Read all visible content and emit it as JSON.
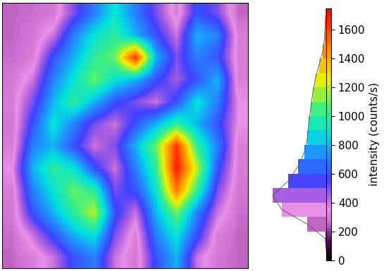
{
  "chart_data": {
    "type": "heatmap",
    "tick_labels": false,
    "cells": [
      [
        250,
        260,
        280,
        500,
        700,
        900,
        700,
        500,
        300,
        600,
        500,
        250
      ],
      [
        250,
        280,
        400,
        700,
        900,
        1000,
        800,
        600,
        400,
        800,
        700,
        300
      ],
      [
        260,
        300,
        600,
        800,
        1000,
        1100,
        1650,
        800,
        500,
        700,
        600,
        300
      ],
      [
        280,
        400,
        700,
        900,
        1100,
        900,
        800,
        600,
        450,
        600,
        800,
        300
      ],
      [
        300,
        500,
        800,
        1000,
        800,
        600,
        500,
        400,
        600,
        900,
        700,
        350
      ],
      [
        280,
        600,
        900,
        700,
        500,
        400,
        600,
        800,
        1000,
        800,
        600,
        350
      ],
      [
        300,
        700,
        800,
        600,
        400,
        500,
        800,
        1100,
        1650,
        1000,
        700,
        300
      ],
      [
        350,
        800,
        1000,
        900,
        600,
        400,
        700,
        1000,
        1700,
        1200,
        600,
        300
      ],
      [
        300,
        700,
        900,
        1100,
        1000,
        500,
        600,
        900,
        1500,
        1000,
        500,
        280
      ],
      [
        280,
        600,
        800,
        1000,
        1200,
        600,
        400,
        800,
        1100,
        700,
        400,
        260
      ],
      [
        260,
        400,
        600,
        800,
        900,
        500,
        300,
        700,
        900,
        600,
        300,
        250
      ],
      [
        250,
        300,
        400,
        600,
        700,
        400,
        280,
        600,
        800,
        400,
        280,
        250
      ]
    ],
    "colorbar": {
      "range": [
        0,
        1750
      ],
      "ticks": [
        0,
        200,
        400,
        600,
        800,
        1000,
        1200,
        1400,
        1600
      ],
      "label": "intensity (counts/s)"
    },
    "histogram": {
      "bins": [
        0,
        100,
        200,
        300,
        400,
        500,
        600,
        700,
        800,
        900,
        1000,
        1100,
        1200,
        1300,
        1400,
        1500,
        1600,
        1700,
        1800
      ],
      "counts": [
        0,
        2,
        30,
        70,
        85,
        60,
        45,
        35,
        30,
        28,
        25,
        22,
        18,
        12,
        6,
        3,
        2,
        1
      ]
    }
  }
}
